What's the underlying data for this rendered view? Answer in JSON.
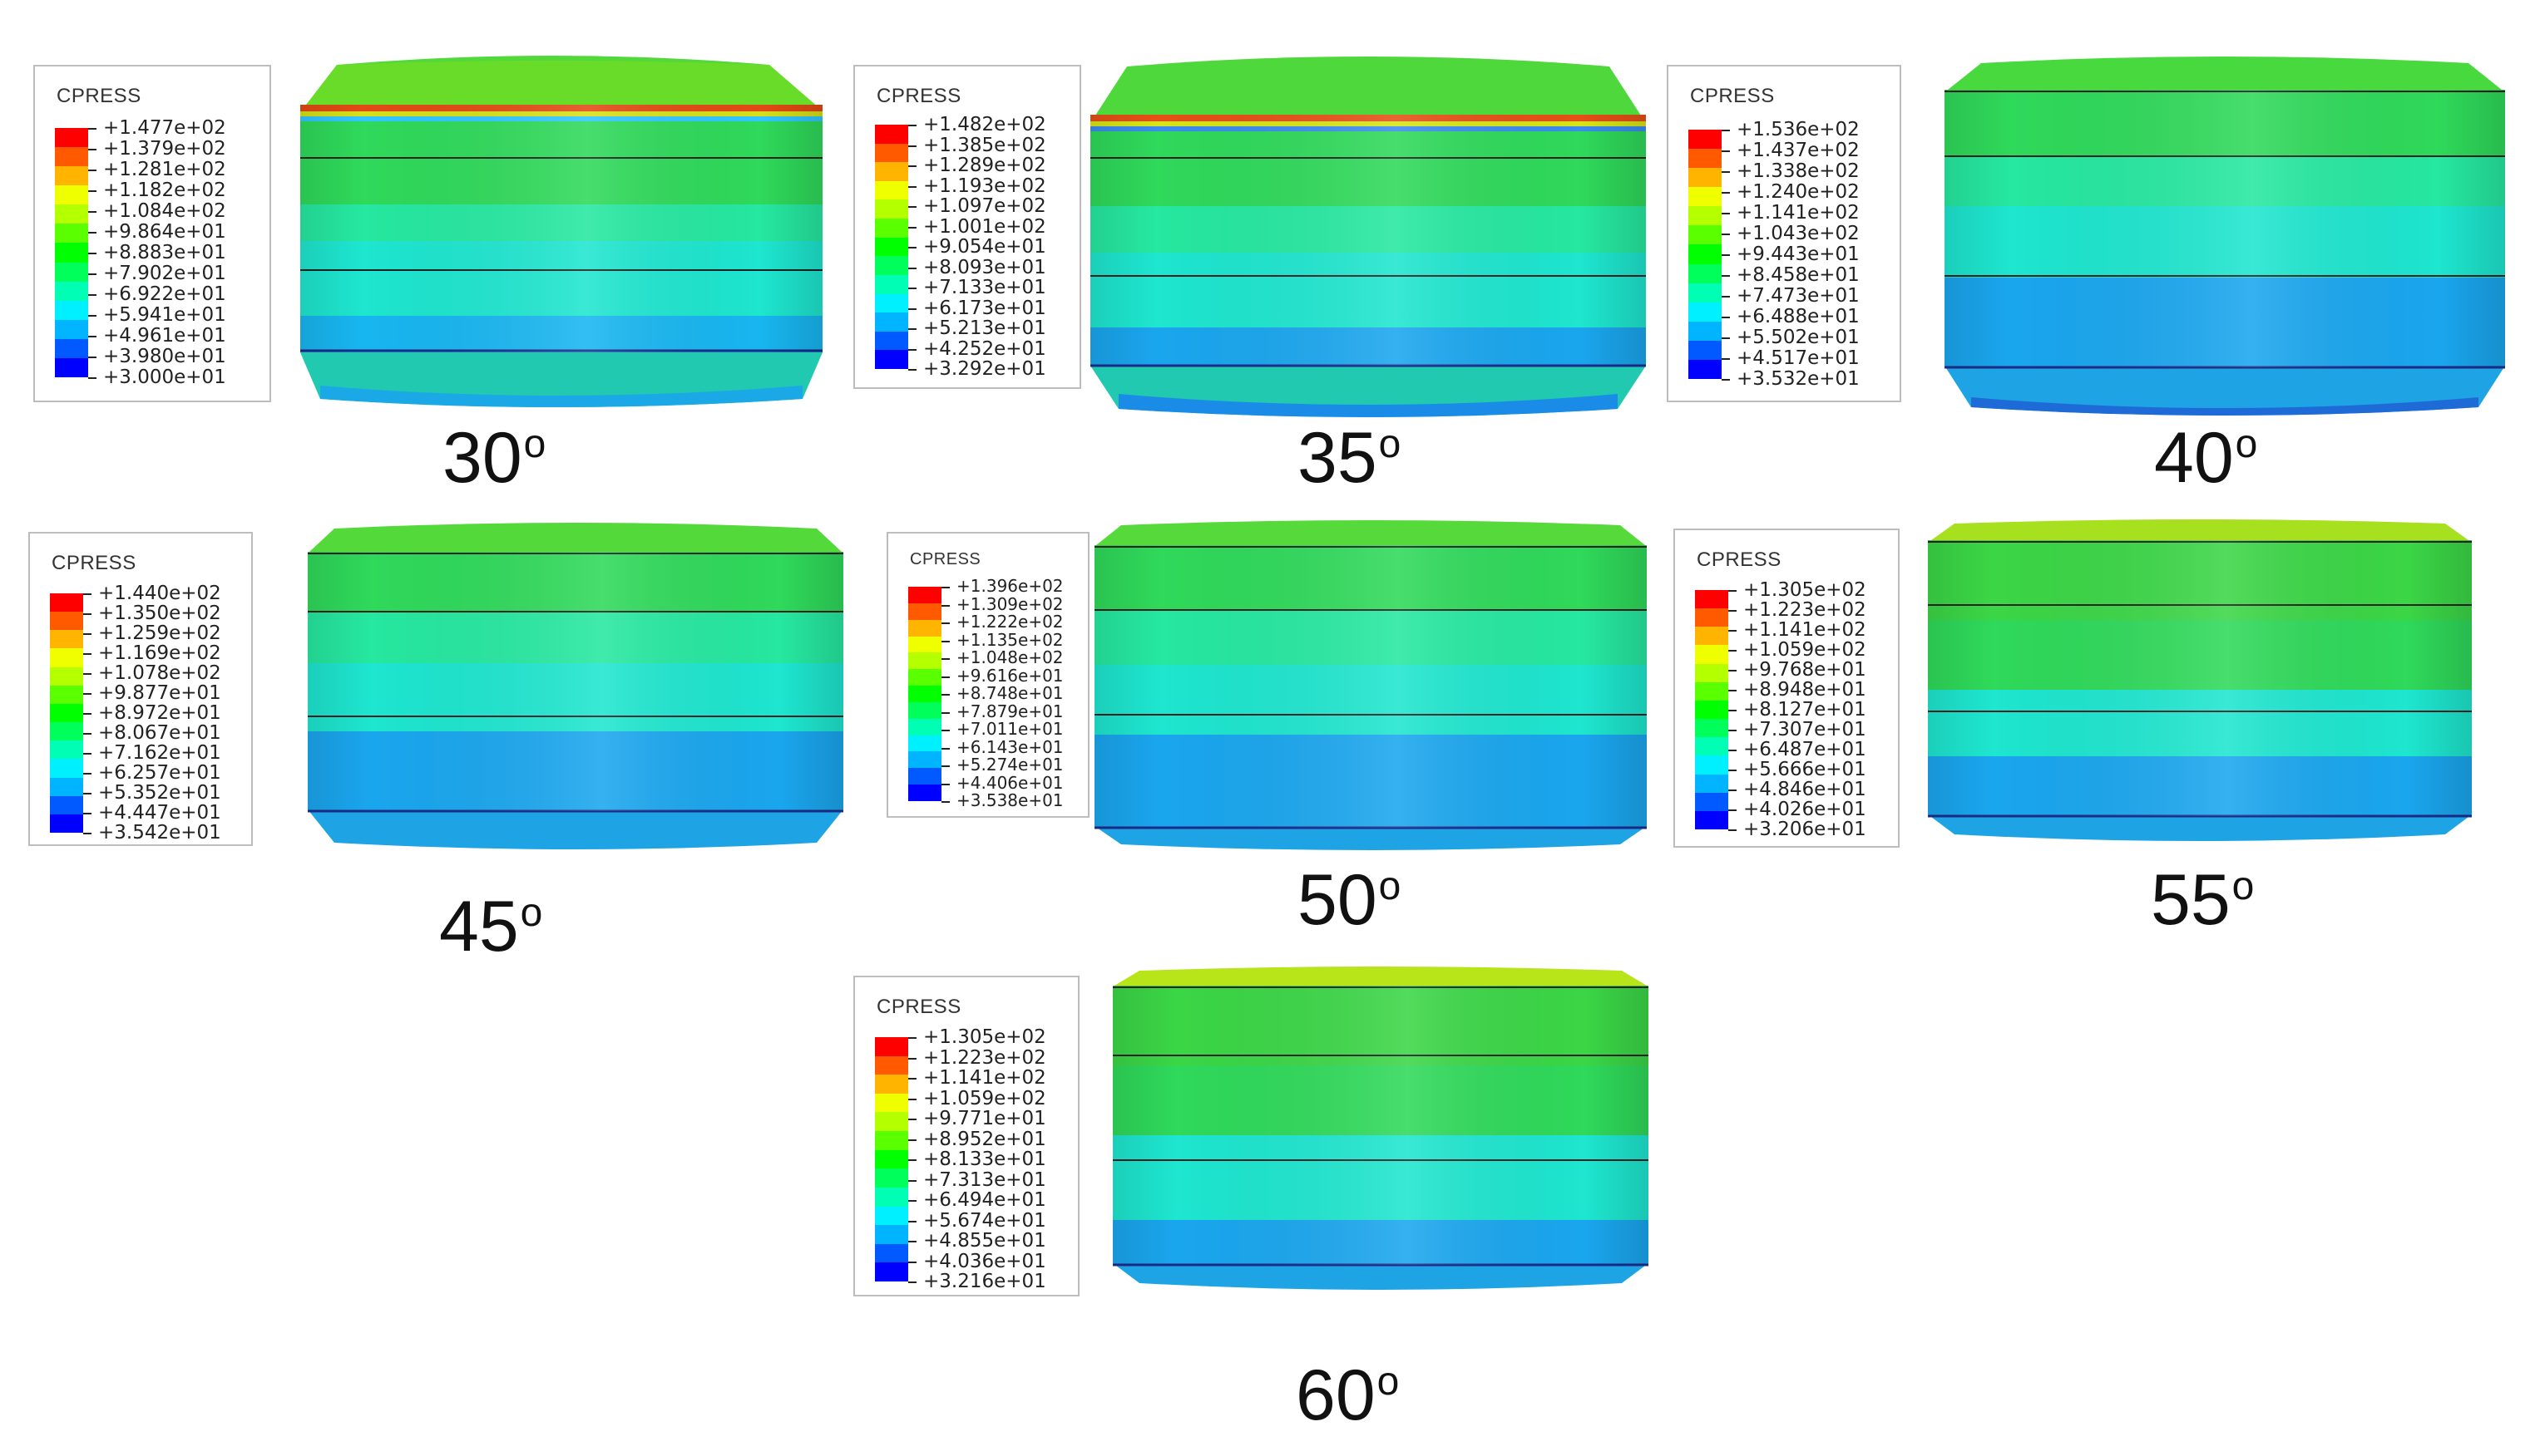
{
  "legend_title": "CPRESS",
  "legend_colors": [
    "#ff0000",
    "#ff5a00",
    "#ffb400",
    "#f0ff00",
    "#b4ff00",
    "#5aff00",
    "#00ff00",
    "#00ff5a",
    "#00ffb4",
    "#00f0ff",
    "#00b4ff",
    "#005aff",
    "#0000ff"
  ],
  "panels": [
    {
      "angle": "30",
      "deg": "o",
      "values": [
        "+1.477e+02",
        "+1.379e+02",
        "+1.281e+02",
        "+1.182e+02",
        "+1.084e+02",
        "+9.864e+01",
        "+8.883e+01",
        "+7.902e+01",
        "+6.922e+01",
        "+5.941e+01",
        "+4.961e+01",
        "+3.980e+01",
        "+3.000e+01"
      ]
    },
    {
      "angle": "35",
      "deg": "o",
      "values": [
        "+1.482e+02",
        "+1.385e+02",
        "+1.289e+02",
        "+1.193e+02",
        "+1.097e+02",
        "+1.001e+02",
        "+9.054e+01",
        "+8.093e+01",
        "+7.133e+01",
        "+6.173e+01",
        "+5.213e+01",
        "+4.252e+01",
        "+3.292e+01"
      ]
    },
    {
      "angle": "40",
      "deg": "o",
      "values": [
        "+1.536e+02",
        "+1.437e+02",
        "+1.338e+02",
        "+1.240e+02",
        "+1.141e+02",
        "+1.043e+02",
        "+9.443e+01",
        "+8.458e+01",
        "+7.473e+01",
        "+6.488e+01",
        "+5.502e+01",
        "+4.517e+01",
        "+3.532e+01"
      ]
    },
    {
      "angle": "45",
      "deg": "o",
      "values": [
        "+1.440e+02",
        "+1.350e+02",
        "+1.259e+02",
        "+1.169e+02",
        "+1.078e+02",
        "+9.877e+01",
        "+8.972e+01",
        "+8.067e+01",
        "+7.162e+01",
        "+6.257e+01",
        "+5.352e+01",
        "+4.447e+01",
        "+3.542e+01"
      ]
    },
    {
      "angle": "50",
      "deg": "o",
      "values": [
        "+1.396e+02",
        "+1.309e+02",
        "+1.222e+02",
        "+1.135e+02",
        "+1.048e+02",
        "+9.616e+01",
        "+8.748e+01",
        "+7.879e+01",
        "+7.011e+01",
        "+6.143e+01",
        "+5.274e+01",
        "+4.406e+01",
        "+3.538e+01"
      ]
    },
    {
      "angle": "55",
      "deg": "o",
      "values": [
        "+1.305e+02",
        "+1.223e+02",
        "+1.141e+02",
        "+1.059e+02",
        "+9.768e+01",
        "+8.948e+01",
        "+8.127e+01",
        "+7.307e+01",
        "+6.487e+01",
        "+5.666e+01",
        "+4.846e+01",
        "+4.026e+01",
        "+3.206e+01"
      ]
    },
    {
      "angle": "60",
      "deg": "o",
      "values": [
        "+1.305e+02",
        "+1.223e+02",
        "+1.141e+02",
        "+1.059e+02",
        "+9.771e+01",
        "+8.952e+01",
        "+8.133e+01",
        "+7.313e+01",
        "+6.494e+01",
        "+5.674e+01",
        "+4.855e+01",
        "+4.036e+01",
        "+3.216e+01"
      ]
    }
  ]
}
